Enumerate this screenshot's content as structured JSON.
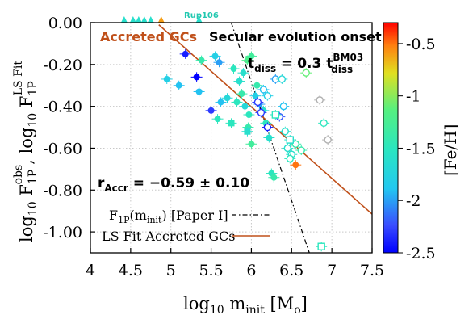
{
  "chart_data": {
    "type": "scatter",
    "xlabel": "log₁₀ m_init [M☉]",
    "ylabel": "log₁₀ F_1P^obs , log₁₀ F_1P^LS Fit",
    "xlim": [
      4,
      7.5
    ],
    "ylim": [
      -1.1,
      0.0
    ],
    "xticks": [
      "4",
      "4.5",
      "5",
      "5.5",
      "6",
      "6.5",
      "7",
      "7.5"
    ],
    "yticks": [
      "0.00",
      "-0.20",
      "-0.40",
      "-0.60",
      "-0.80",
      "-1.00"
    ],
    "grid": true,
    "colorbar": {
      "label": "[Fe/H]",
      "range": [
        -2.5,
        -0.3
      ],
      "ticks": [
        "-0.5",
        "-1",
        "-1.5",
        "-2",
        "-2.5"
      ]
    },
    "annotations": {
      "accreted": "Accreted GCs",
      "rup": "Rup106",
      "secular": "Secular evolution onset",
      "tdiss_main": "t",
      "tdiss_sub": "diss",
      "tdiss_eq": " = 0.3 t",
      "tdiss_sup": "BM03",
      "tdiss_sub2": "diss",
      "raccr_main": "r",
      "raccr_sub": "Accr",
      "raccr_val": " = −0.59 ± 0.10"
    },
    "legend": {
      "placement": "bottom-left",
      "entries": [
        {
          "label": "F_1P(m_init) [Paper I]",
          "style": "dash-dot",
          "color": "#000000"
        },
        {
          "label": "LS Fit Accreted GCs",
          "style": "solid",
          "color": "#c0501a"
        }
      ]
    },
    "lines": {
      "paper1": {
        "x": [
          5.75,
          6.72
        ],
        "y": [
          0.0,
          -1.1
        ]
      },
      "lsfit": {
        "x": [
          4.85,
          7.5
        ],
        "y": [
          -0.01,
          -0.915
        ]
      }
    },
    "upper_limits": [
      {
        "x": 4.42,
        "feh": -1.6
      },
      {
        "x": 4.53,
        "feh": -1.6
      },
      {
        "x": 4.6,
        "feh": -1.6
      },
      {
        "x": 4.67,
        "feh": -1.6
      },
      {
        "x": 4.75,
        "feh": -1.6
      },
      {
        "x": 4.88,
        "feh": -0.6
      },
      {
        "x": 5.35,
        "feh": -1.6
      }
    ],
    "points": [
      {
        "x": 5.18,
        "y": -0.15,
        "feh": -2.4,
        "shape": "filled"
      },
      {
        "x": 5.38,
        "y": -0.18,
        "feh": -1.4,
        "shape": "filled"
      },
      {
        "x": 5.55,
        "y": -0.16,
        "feh": -1.8,
        "shape": "filled"
      },
      {
        "x": 5.6,
        "y": -0.19,
        "feh": -2.0,
        "shape": "filled"
      },
      {
        "x": 5.32,
        "y": -0.26,
        "feh": -2.5,
        "shape": "filled"
      },
      {
        "x": 5.35,
        "y": -0.33,
        "feh": -1.9,
        "shape": "filled"
      },
      {
        "x": 4.95,
        "y": -0.27,
        "feh": -1.8,
        "shape": "filled"
      },
      {
        "x": 5.1,
        "y": -0.3,
        "feh": -1.9,
        "shape": "filled"
      },
      {
        "x": 5.5,
        "y": -0.42,
        "feh": -2.3,
        "shape": "filled"
      },
      {
        "x": 5.62,
        "y": -0.38,
        "feh": -1.9,
        "shape": "filled"
      },
      {
        "x": 5.58,
        "y": -0.46,
        "feh": -1.5,
        "shape": "filled"
      },
      {
        "x": 5.7,
        "y": -0.36,
        "feh": -1.7,
        "shape": "filled"
      },
      {
        "x": 5.85,
        "y": -0.28,
        "feh": -1.6,
        "shape": "filled"
      },
      {
        "x": 5.82,
        "y": -0.38,
        "feh": -1.5,
        "shape": "filled"
      },
      {
        "x": 5.88,
        "y": -0.34,
        "feh": -1.4,
        "shape": "filled"
      },
      {
        "x": 5.92,
        "y": -0.4,
        "feh": -1.7,
        "shape": "filled"
      },
      {
        "x": 5.97,
        "y": -0.44,
        "feh": -1.5,
        "shape": "filled"
      },
      {
        "x": 5.9,
        "y": -0.24,
        "feh": -1.6,
        "shape": "filled"
      },
      {
        "x": 5.95,
        "y": -0.18,
        "feh": -1.2,
        "shape": "filled"
      },
      {
        "x": 6.0,
        "y": -0.16,
        "feh": -1.3,
        "shape": "filled"
      },
      {
        "x": 6.05,
        "y": -0.35,
        "feh": -1.8,
        "shape": "filled"
      },
      {
        "x": 5.78,
        "y": -0.22,
        "feh": -1.5,
        "shape": "filled"
      },
      {
        "x": 5.96,
        "y": -0.5,
        "feh": -1.4,
        "shape": "filled"
      },
      {
        "x": 6.0,
        "y": -0.58,
        "feh": -1.3,
        "shape": "filled"
      },
      {
        "x": 6.15,
        "y": -0.42,
        "feh": -1.6,
        "shape": "filled"
      },
      {
        "x": 6.18,
        "y": -0.48,
        "feh": -1.5,
        "shape": "filled"
      },
      {
        "x": 6.22,
        "y": -0.55,
        "feh": -1.6,
        "shape": "filled"
      },
      {
        "x": 6.25,
        "y": -0.72,
        "feh": -1.5,
        "shape": "filled"
      },
      {
        "x": 6.28,
        "y": -0.74,
        "feh": -1.4,
        "shape": "filled"
      },
      {
        "x": 6.55,
        "y": -0.68,
        "feh": -0.5,
        "shape": "filled"
      },
      {
        "x": 6.07,
        "y": -0.3,
        "feh": -1.4,
        "shape": "filled"
      },
      {
        "x": 6.1,
        "y": -0.39,
        "feh": -2.0,
        "shape": "filled"
      },
      {
        "x": 5.75,
        "y": -0.48,
        "feh": -1.5,
        "shape": "square"
      },
      {
        "x": 5.95,
        "y": -0.52,
        "feh": -1.6,
        "shape": "square"
      },
      {
        "x": 6.3,
        "y": -0.27,
        "feh": -2.0,
        "shape": "open"
      },
      {
        "x": 6.38,
        "y": -0.27,
        "feh": -1.7,
        "shape": "open"
      },
      {
        "x": 6.08,
        "y": -0.38,
        "feh": -2.3,
        "shape": "open"
      },
      {
        "x": 6.12,
        "y": -0.43,
        "feh": -2.3,
        "shape": "open"
      },
      {
        "x": 6.2,
        "y": -0.5,
        "feh": -2.4,
        "shape": "open"
      },
      {
        "x": 6.2,
        "y": -0.35,
        "feh": -1.8,
        "shape": "open"
      },
      {
        "x": 6.15,
        "y": -0.32,
        "feh": -1.9,
        "shape": "open"
      },
      {
        "x": 6.35,
        "y": -0.45,
        "feh": -2.2,
        "shape": "open"
      },
      {
        "x": 6.4,
        "y": -0.4,
        "feh": -1.9,
        "shape": "open"
      },
      {
        "x": 6.42,
        "y": -0.52,
        "feh": -1.6,
        "shape": "open"
      },
      {
        "x": 6.45,
        "y": -0.6,
        "feh": -1.6,
        "shape": "open"
      },
      {
        "x": 6.5,
        "y": -0.63,
        "feh": -1.6,
        "shape": "open"
      },
      {
        "x": 6.48,
        "y": -0.65,
        "feh": -1.5,
        "shape": "open"
      },
      {
        "x": 6.55,
        "y": -0.58,
        "feh": -1.4,
        "shape": "open"
      },
      {
        "x": 6.62,
        "y": -0.61,
        "feh": -1.4,
        "shape": "open"
      },
      {
        "x": 6.68,
        "y": -0.24,
        "feh": -1.1,
        "shape": "open"
      },
      {
        "x": 6.9,
        "y": -0.48,
        "feh": -1.5,
        "shape": "open"
      },
      {
        "x": 6.85,
        "y": -0.37,
        "feh": -2.6,
        "shape": "open"
      },
      {
        "x": 6.95,
        "y": -0.56,
        "feh": -2.6,
        "shape": "open"
      },
      {
        "x": 6.3,
        "y": -0.44,
        "feh": -1.5,
        "shape": "opensq"
      },
      {
        "x": 6.48,
        "y": -0.56,
        "feh": -1.6,
        "shape": "opensq"
      },
      {
        "x": 6.87,
        "y": -1.07,
        "feh": -1.5,
        "shape": "opensq"
      }
    ]
  }
}
